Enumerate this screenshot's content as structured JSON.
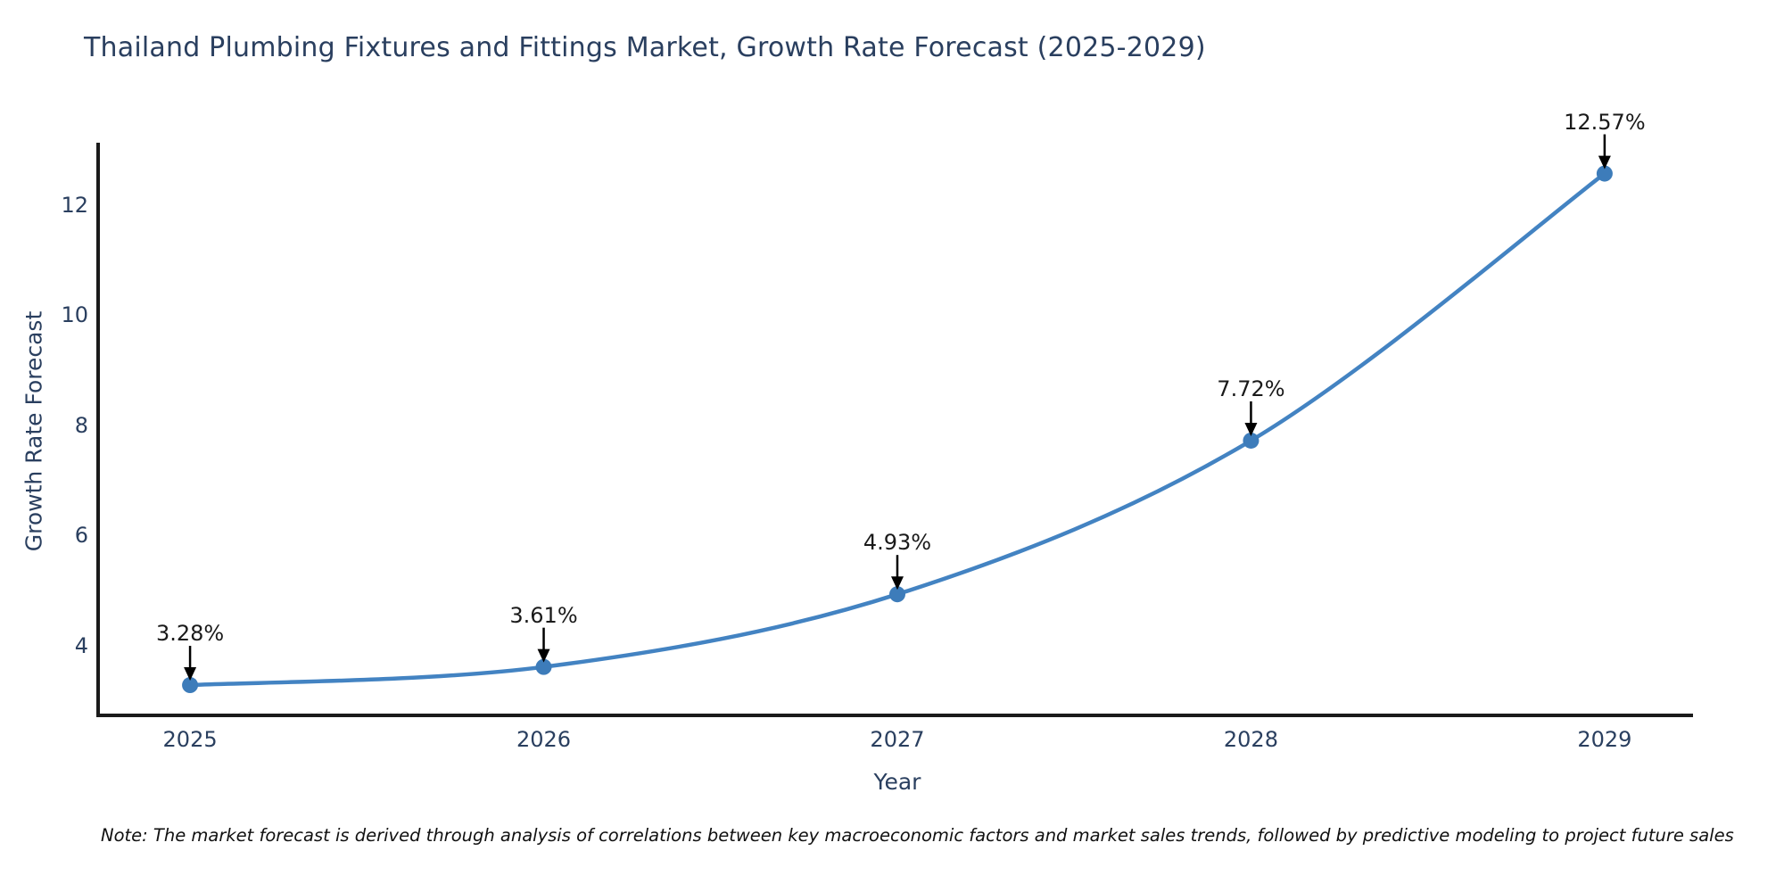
{
  "note": "Note: The market forecast is derived through analysis of correlations between key macroeconomic factors and market sales trends, followed by predictive modeling to project future sales",
  "chart_data": {
    "type": "line",
    "title": "Thailand Plumbing Fixtures and Fittings Market, Growth Rate Forecast (2025-2029)",
    "xlabel": "Year",
    "ylabel": "Growth Rate Forecast",
    "x": [
      2025,
      2026,
      2027,
      2028,
      2029
    ],
    "y": [
      3.28,
      3.61,
      4.93,
      7.72,
      12.57
    ],
    "point_labels": [
      "3.28%",
      "3.61%",
      "4.93%",
      "7.72%",
      "12.57%"
    ],
    "xticks": [
      "2025",
      "2026",
      "2027",
      "2028",
      "2029"
    ],
    "xtick_values": [
      2025,
      2026,
      2027,
      2028,
      2029
    ],
    "yticks": [
      "4",
      "6",
      "8",
      "10",
      "12"
    ],
    "ytick_values": [
      4,
      6,
      8,
      10,
      12
    ],
    "xlim": [
      2024.74,
      2029.25
    ],
    "ylim": [
      2.73,
      13.13
    ],
    "grid": false,
    "legend": "none",
    "curve": "spline",
    "colors": {
      "line": "#4383c2",
      "marker": "#3d7cba",
      "axis": "#1a1a1a",
      "tick_text": "#2a3f5f",
      "annotation_text": "#1a1a1a",
      "arrow": "#000000",
      "background": "#ffffff"
    }
  }
}
